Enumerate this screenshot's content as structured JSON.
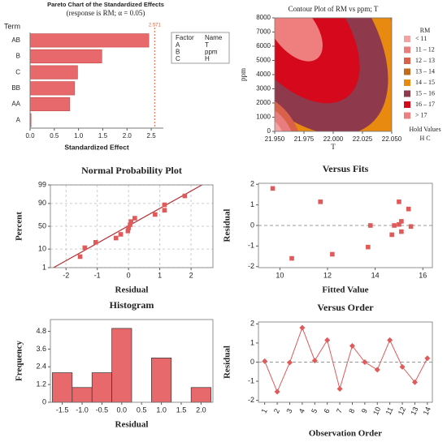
{
  "chart_data": [
    {
      "type": "bar",
      "orientation": "horizontal",
      "title": "Pareto Chart of the Standardized Effects",
      "subtitle": "(response is RM; α = 0.05)",
      "ylabel": "Term",
      "xlabel": "Standardized Effect",
      "categories": [
        "AB",
        "B",
        "C",
        "BB",
        "AA",
        "A"
      ],
      "values": [
        2.45,
        1.48,
        0.98,
        0.92,
        0.82,
        0.02
      ],
      "color": "#e8696b",
      "xlim": [
        0,
        2.75
      ],
      "xticks": [
        {
          "value": 0,
          "label": "0.0"
        },
        0.5,
        {
          "value": 1,
          "label": "1.0"
        },
        1.5,
        {
          "value": 2,
          "label": "2.0"
        },
        2.5
      ],
      "reference": {
        "value": 2.571,
        "label": "2.571"
      },
      "factors": {
        "header": [
          "Factor",
          "Name"
        ],
        "rows": [
          [
            "A",
            "T"
          ],
          [
            "B",
            "ppm"
          ],
          [
            "C",
            "H"
          ]
        ]
      }
    },
    {
      "type": "contour",
      "title": "Contour Plot of RM vs ppm; T",
      "xlabel": "T",
      "ylabel": "ppm",
      "xlim": [
        21.95,
        22.05
      ],
      "xticks": [
        {
          "value": 21.95,
          "label": "21.950"
        },
        {
          "value": 21.975,
          "label": "21.975"
        },
        {
          "value": 22,
          "label": "22.000"
        },
        {
          "value": 22.025,
          "label": "22.025"
        },
        {
          "value": 22.05,
          "label": "22.050"
        }
      ],
      "ylim": [
        0,
        8000
      ],
      "yticks": [
        0,
        1000,
        2000,
        3000,
        4000,
        5000,
        6000,
        7000,
        8000
      ],
      "legend_title": "RM",
      "levels": [
        {
          "label": "< 11",
          "color": "#f2a3a3"
        },
        {
          "label": "11 – 12",
          "color": "#e97c7c"
        },
        {
          "label": "12 – 13",
          "color": "#d9614a"
        },
        {
          "label": "13 – 14",
          "color": "#c56a1c"
        },
        {
          "label": "14 – 15",
          "color": "#e88a10"
        },
        {
          "label": "15 – 16",
          "color": "#8e3a4c"
        },
        {
          "label": "16 – 17",
          "color": "#d6081c"
        },
        {
          "label": "> 17",
          "color": "#ef7f7f"
        }
      ],
      "hold_values_title": "Hold Values",
      "hold_values": "H  C"
    },
    {
      "type": "probability",
      "title": "Normal Probability Plot",
      "xlabel": "Residual",
      "ylabel": "Percent",
      "x": [
        -1.55,
        -1.4,
        -1.05,
        -0.4,
        -0.25,
        -0.02,
        0.0,
        0.05,
        0.08,
        0.2,
        0.85,
        1.15,
        1.15,
        1.8
      ],
      "values": [
        4.4,
        11.4,
        18.4,
        25.4,
        32.5,
        39.5,
        46.5,
        53.5,
        60.5,
        67.5,
        74.6,
        81.6,
        88.6,
        95.6
      ],
      "fit_line": {
        "x": [
          -2.4,
          2.35
        ],
        "y": [
          1,
          99
        ]
      },
      "color": "#e05a5a",
      "xlim": [
        -2.5,
        2.7
      ],
      "xticks": [
        -2,
        -1,
        0,
        1,
        2
      ],
      "ylim": [
        1,
        99
      ],
      "yticks": [
        1,
        10,
        50,
        90,
        99
      ],
      "grid": true
    },
    {
      "type": "scatter",
      "title": "Versus Fits",
      "xlabel": "Fitted Value",
      "ylabel": "Residual",
      "x": [
        9.7,
        10.5,
        11.7,
        12.2,
        13.7,
        13.8,
        14.7,
        14.8,
        15.0,
        15.0,
        15.1,
        15.1,
        15.4,
        15.5
      ],
      "values": [
        1.8,
        -1.6,
        1.15,
        -1.4,
        -1.05,
        0.0,
        -0.45,
        0.0,
        1.15,
        0.05,
        -0.3,
        0.2,
        0.8,
        -0.05
      ],
      "color": "#e05a5a",
      "xlim": [
        9.1,
        16.4
      ],
      "xticks": [
        10,
        12,
        14,
        16
      ],
      "ylim": [
        -2.05,
        2.05
      ],
      "yticks": [
        -2,
        -1,
        0,
        1,
        2
      ],
      "reference": 0
    },
    {
      "type": "histogram",
      "title": "Histogram",
      "xlabel": "Residual",
      "ylabel": "Frequency",
      "bins": [
        -1.75,
        -1.25,
        -0.75,
        -0.25,
        0.25,
        0.75,
        1.25,
        1.75,
        2.25
      ],
      "values": [
        2,
        1,
        2,
        5,
        0,
        3,
        0,
        1
      ],
      "color": "#e8696b",
      "xlim": [
        -1.8,
        2.3
      ],
      "xticks": [
        -1.5,
        {
          "value": -1,
          "label": "-1.0"
        },
        -0.5,
        {
          "value": 0,
          "label": "0.0"
        },
        0.5,
        {
          "value": 1,
          "label": "1.0"
        },
        1.5,
        {
          "value": 2,
          "label": "2.0"
        }
      ],
      "ylim": [
        0,
        5.6
      ],
      "yticks": [
        0,
        1.2,
        2.4,
        3.6,
        4.8
      ]
    },
    {
      "type": "line",
      "title": "Versus Order",
      "xlabel": "Observation Order",
      "ylabel": "Residual",
      "x": [
        1,
        2,
        3,
        4,
        5,
        6,
        7,
        8,
        9,
        10,
        11,
        12,
        13,
        14
      ],
      "values": [
        0.05,
        -1.55,
        -0.02,
        1.8,
        0.08,
        1.15,
        -1.4,
        0.85,
        0.0,
        -0.4,
        1.15,
        -0.25,
        -1.05,
        0.2
      ],
      "color": "#e05a5a",
      "xlim": [
        0.5,
        14.4
      ],
      "xticks": [
        1,
        2,
        3,
        4,
        5,
        6,
        7,
        8,
        9,
        10,
        11,
        12,
        13,
        14
      ],
      "ylim": [
        -2.1,
        2.1
      ],
      "yticks": [
        -2,
        -1,
        0,
        1,
        2
      ],
      "reference": 0
    }
  ]
}
